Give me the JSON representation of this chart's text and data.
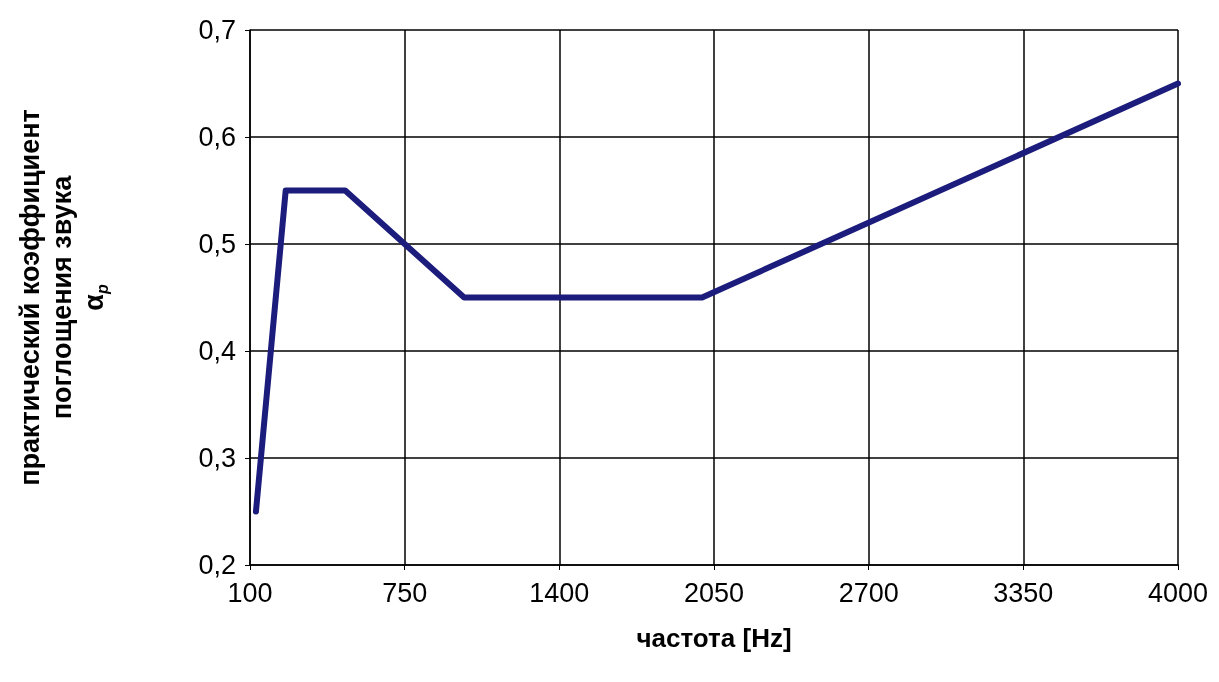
{
  "chart_data": {
    "type": "line",
    "xlabel": "частота [Hz]",
    "ylabel": "практический коэффициент\nпоглощения звука\nα$_{p}$",
    "x": [
      125,
      250,
      500,
      1000,
      2000,
      4000
    ],
    "series": [
      {
        "color": "#1c1c7c",
        "values": [
          0.25,
          0.55,
          0.55,
          0.45,
          0.45,
          0.65
        ]
      }
    ],
    "xlim": [
      100,
      4000
    ],
    "xticks": [
      100,
      750,
      1400,
      2050,
      2700,
      3350,
      4000
    ],
    "ylim": [
      0.2,
      0.7
    ],
    "yticks": [
      {
        "value": 0.2,
        "label": "0,2"
      },
      {
        "value": 0.3,
        "label": "0,3"
      },
      {
        "value": 0.4,
        "label": "0,4"
      },
      {
        "value": 0.5,
        "label": "0,5"
      },
      {
        "value": 0.6,
        "label": "0,6"
      },
      {
        "value": 0.7,
        "label": "0,7"
      }
    ],
    "grid": true,
    "marker": "none",
    "line_style": "solid"
  }
}
